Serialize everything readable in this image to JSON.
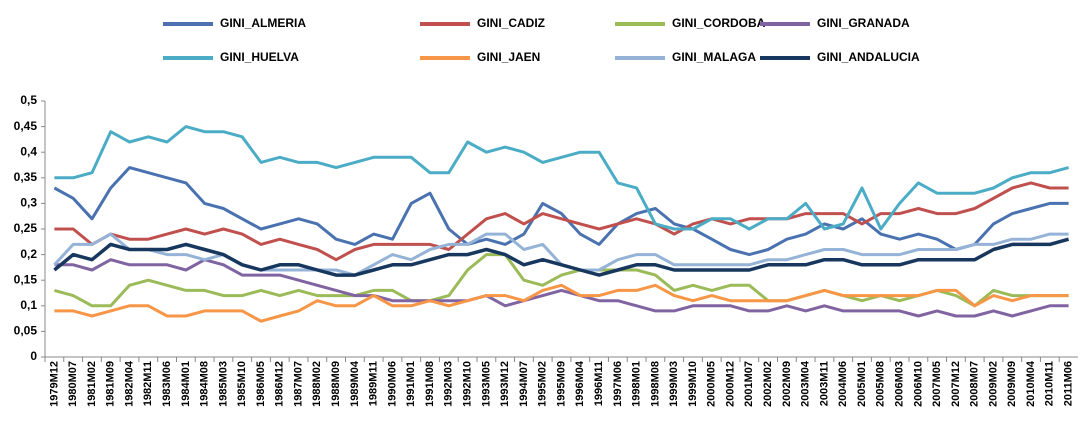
{
  "chart_data": {
    "type": "line",
    "categories": [
      "1979M12",
      "1980M07",
      "1981M02",
      "1981M09",
      "1982M04",
      "1982M11",
      "1983M06",
      "1984M01",
      "1984M08",
      "1985M03",
      "1985M10",
      "1986M05",
      "1986M12",
      "1987M07",
      "1988M02",
      "1988M09",
      "1989M04",
      "1989M11",
      "1990M06",
      "1991M01",
      "1991M08",
      "1992M03",
      "1992M10",
      "1993M05",
      "1993M12",
      "1994M07",
      "1995M02",
      "1995M09",
      "1996M04",
      "1996M11",
      "1997M06",
      "1998M01",
      "1998M08",
      "1999M03",
      "1999M10",
      "2000M05",
      "2000M12",
      "2001M07",
      "2002M02",
      "2002M09",
      "2003M04",
      "2003M11",
      "2004M06",
      "2005M01",
      "2005M08",
      "2006M03",
      "2006M10",
      "2007M05",
      "2007M12",
      "2008M07",
      "2009M02",
      "2009M09",
      "2010M04",
      "2010M11",
      "2011M06"
    ],
    "series": [
      {
        "name": "GINI_ALMERIA",
        "color": "#4a72b0",
        "values": [
          0.33,
          0.31,
          0.27,
          0.33,
          0.37,
          0.36,
          0.35,
          0.34,
          0.3,
          0.29,
          0.27,
          0.25,
          0.26,
          0.27,
          0.26,
          0.23,
          0.22,
          0.24,
          0.23,
          0.3,
          0.32,
          0.25,
          0.22,
          0.23,
          0.22,
          0.24,
          0.3,
          0.28,
          0.24,
          0.22,
          0.26,
          0.28,
          0.29,
          0.26,
          0.25,
          0.23,
          0.21,
          0.2,
          0.21,
          0.23,
          0.24,
          0.26,
          0.25,
          0.27,
          0.24,
          0.23,
          0.24,
          0.23,
          0.21,
          0.22,
          0.26,
          0.28,
          0.29,
          0.3,
          0.3
        ]
      },
      {
        "name": "GINI_CADIZ",
        "color": "#c0504d",
        "values": [
          0.25,
          0.25,
          0.22,
          0.24,
          0.23,
          0.23,
          0.24,
          0.25,
          0.24,
          0.25,
          0.24,
          0.22,
          0.23,
          0.22,
          0.21,
          0.19,
          0.21,
          0.22,
          0.22,
          0.22,
          0.22,
          0.21,
          0.24,
          0.27,
          0.28,
          0.26,
          0.28,
          0.27,
          0.26,
          0.25,
          0.26,
          0.27,
          0.26,
          0.24,
          0.26,
          0.27,
          0.26,
          0.27,
          0.27,
          0.27,
          0.28,
          0.28,
          0.28,
          0.26,
          0.28,
          0.28,
          0.29,
          0.28,
          0.28,
          0.29,
          0.31,
          0.33,
          0.34,
          0.33,
          0.33
        ]
      },
      {
        "name": "GINI_CORDOBA",
        "color": "#9bbb59",
        "values": [
          0.13,
          0.12,
          0.1,
          0.1,
          0.14,
          0.15,
          0.14,
          0.13,
          0.13,
          0.12,
          0.12,
          0.13,
          0.12,
          0.13,
          0.12,
          0.12,
          0.12,
          0.13,
          0.13,
          0.11,
          0.11,
          0.12,
          0.17,
          0.2,
          0.2,
          0.15,
          0.14,
          0.16,
          0.17,
          0.17,
          0.17,
          0.17,
          0.16,
          0.13,
          0.14,
          0.13,
          0.14,
          0.14,
          0.11,
          0.11,
          0.12,
          0.13,
          0.12,
          0.11,
          0.12,
          0.11,
          0.12,
          0.13,
          0.12,
          0.1,
          0.13,
          0.12,
          0.12,
          0.12,
          0.12
        ]
      },
      {
        "name": "GINI_GRANADA",
        "color": "#8064a2",
        "values": [
          0.18,
          0.18,
          0.17,
          0.19,
          0.18,
          0.18,
          0.18,
          0.17,
          0.19,
          0.18,
          0.16,
          0.16,
          0.16,
          0.15,
          0.14,
          0.13,
          0.12,
          0.12,
          0.11,
          0.11,
          0.11,
          0.11,
          0.11,
          0.12,
          0.1,
          0.11,
          0.12,
          0.13,
          0.12,
          0.11,
          0.11,
          0.1,
          0.09,
          0.09,
          0.1,
          0.1,
          0.1,
          0.09,
          0.09,
          0.1,
          0.09,
          0.1,
          0.09,
          0.09,
          0.09,
          0.09,
          0.08,
          0.09,
          0.08,
          0.08,
          0.09,
          0.08,
          0.09,
          0.1,
          0.1
        ]
      },
      {
        "name": "GINI_HUELVA",
        "color": "#4bacc6",
        "values": [
          0.35,
          0.35,
          0.36,
          0.44,
          0.42,
          0.43,
          0.42,
          0.45,
          0.44,
          0.44,
          0.43,
          0.38,
          0.39,
          0.38,
          0.38,
          0.37,
          0.38,
          0.39,
          0.39,
          0.39,
          0.36,
          0.36,
          0.42,
          0.4,
          0.41,
          0.4,
          0.38,
          0.39,
          0.4,
          0.4,
          0.34,
          0.33,
          0.26,
          0.25,
          0.25,
          0.27,
          0.27,
          0.25,
          0.27,
          0.27,
          0.3,
          0.25,
          0.26,
          0.33,
          0.25,
          0.3,
          0.34,
          0.32,
          0.32,
          0.32,
          0.33,
          0.35,
          0.36,
          0.36,
          0.37
        ]
      },
      {
        "name": "GINI_JAEN",
        "color": "#f79646",
        "values": [
          0.09,
          0.09,
          0.08,
          0.09,
          0.1,
          0.1,
          0.08,
          0.08,
          0.09,
          0.09,
          0.09,
          0.07,
          0.08,
          0.09,
          0.11,
          0.1,
          0.1,
          0.12,
          0.1,
          0.1,
          0.11,
          0.1,
          0.11,
          0.12,
          0.12,
          0.11,
          0.13,
          0.14,
          0.12,
          0.12,
          0.13,
          0.13,
          0.14,
          0.12,
          0.11,
          0.12,
          0.11,
          0.11,
          0.11,
          0.11,
          0.12,
          0.13,
          0.12,
          0.12,
          0.12,
          0.12,
          0.12,
          0.13,
          0.13,
          0.1,
          0.12,
          0.11,
          0.12,
          0.12,
          0.12
        ]
      },
      {
        "name": "GINI_MALAGA",
        "color": "#95b3d7",
        "values": [
          0.18,
          0.22,
          0.22,
          0.24,
          0.21,
          0.21,
          0.2,
          0.2,
          0.19,
          0.2,
          0.18,
          0.17,
          0.17,
          0.17,
          0.17,
          0.17,
          0.16,
          0.18,
          0.2,
          0.19,
          0.21,
          0.22,
          0.22,
          0.24,
          0.24,
          0.21,
          0.22,
          0.18,
          0.17,
          0.17,
          0.19,
          0.2,
          0.2,
          0.18,
          0.18,
          0.18,
          0.18,
          0.18,
          0.19,
          0.19,
          0.2,
          0.21,
          0.21,
          0.2,
          0.2,
          0.2,
          0.21,
          0.21,
          0.21,
          0.22,
          0.22,
          0.23,
          0.23,
          0.24,
          0.24
        ]
      },
      {
        "name": "GINI_ANDALUCIA",
        "color": "#17375e",
        "values": [
          0.17,
          0.2,
          0.19,
          0.22,
          0.21,
          0.21,
          0.21,
          0.22,
          0.21,
          0.2,
          0.18,
          0.17,
          0.18,
          0.18,
          0.17,
          0.16,
          0.16,
          0.17,
          0.18,
          0.18,
          0.19,
          0.2,
          0.2,
          0.21,
          0.2,
          0.18,
          0.19,
          0.18,
          0.17,
          0.16,
          0.17,
          0.18,
          0.18,
          0.17,
          0.17,
          0.17,
          0.17,
          0.17,
          0.18,
          0.18,
          0.18,
          0.19,
          0.19,
          0.18,
          0.18,
          0.18,
          0.19,
          0.19,
          0.19,
          0.19,
          0.21,
          0.22,
          0.22,
          0.22,
          0.23
        ]
      }
    ],
    "ylim": [
      0,
      0.5
    ],
    "yticks": [
      0,
      {
        "value": 0.05,
        "label": "0,05"
      },
      {
        "value": 0.1,
        "label": "0,1"
      },
      {
        "value": 0.15,
        "label": "0,15"
      },
      {
        "value": 0.2,
        "label": "0,2"
      },
      {
        "value": 0.25,
        "label": "0,25"
      },
      {
        "value": 0.3,
        "label": "0,3"
      },
      {
        "value": 0.35,
        "label": "0,35"
      },
      {
        "value": 0.4,
        "label": "0,4"
      },
      {
        "value": 0.45,
        "label": "0,45"
      },
      {
        "value": 0.5,
        "label": "0,5"
      }
    ],
    "grid": false,
    "legend": "top"
  }
}
